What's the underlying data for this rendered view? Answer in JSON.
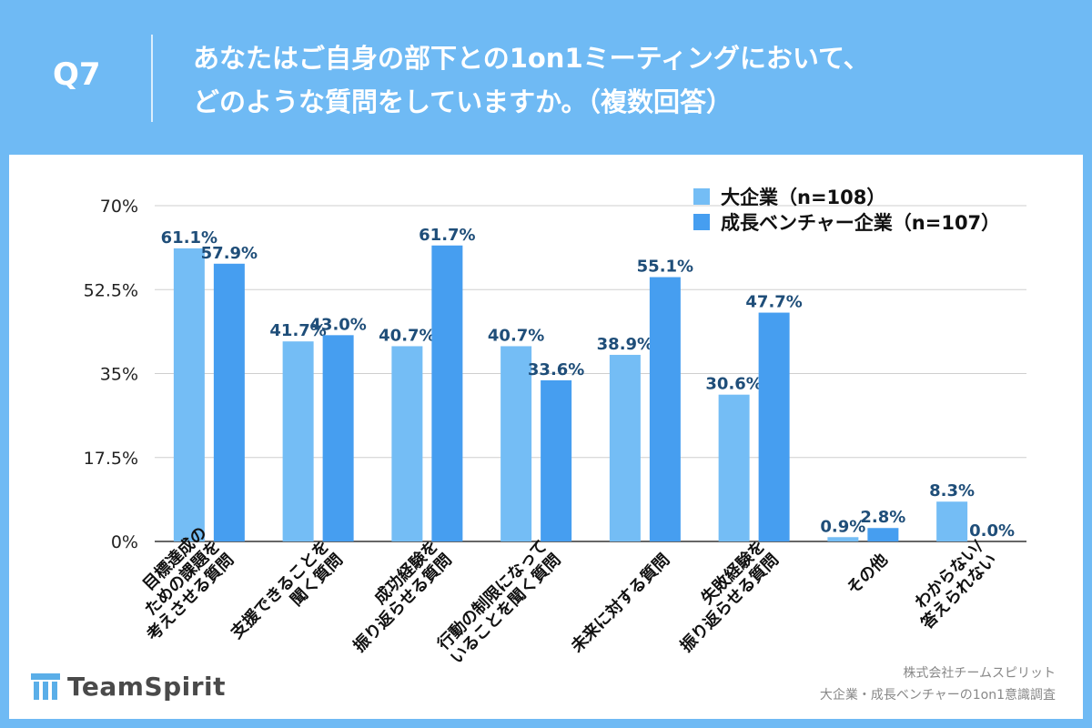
{
  "header": {
    "question_label": "Q7",
    "title_line1": "あなたはご自身の部下との1on1ミーティングにおいて、",
    "title_line2": "どのような質問をしていますか。（複数回答）"
  },
  "colors": {
    "background": "#6fbaf4",
    "series1": "#74bdf5",
    "series2": "#469ef0",
    "value_label": "#1f4e79"
  },
  "logo": {
    "text": "TeamSpirit",
    "icon": "teamspirit-logo-icon"
  },
  "source": {
    "line1": "株式会社チームスピリット",
    "line2": "大企業・成長ベンチャーの1on1意識調査"
  },
  "chart_data": {
    "type": "bar",
    "ylim": [
      0,
      70
    ],
    "yticks": [
      0,
      17.5,
      35,
      52.5,
      70
    ],
    "ytick_labels": [
      "0%",
      "17.5%",
      "35%",
      "52.5%",
      "70%"
    ],
    "grid": true,
    "legend_position": "top-right",
    "categories": [
      [
        "目標達成の",
        "ための課題を",
        "考えさせる質問"
      ],
      [
        "支援できることを",
        "聞く質問"
      ],
      [
        "成功経験を",
        "振り返らせる質問"
      ],
      [
        "行動の制限になって",
        "いることを聞く質問"
      ],
      [
        "未来に対する質問"
      ],
      [
        "失敗経験を",
        "振り返らせる質問"
      ],
      [
        "その他"
      ],
      [
        "わからない/",
        "答えられない"
      ]
    ],
    "series": [
      {
        "name": "大企業（n=108）",
        "values": [
          61.1,
          41.7,
          40.7,
          40.7,
          38.9,
          30.6,
          0.9,
          8.3
        ]
      },
      {
        "name": "成長ベンチャー企業（n=107）",
        "values": [
          57.9,
          43.0,
          61.7,
          33.6,
          55.1,
          47.7,
          2.8,
          0.0
        ]
      }
    ]
  }
}
